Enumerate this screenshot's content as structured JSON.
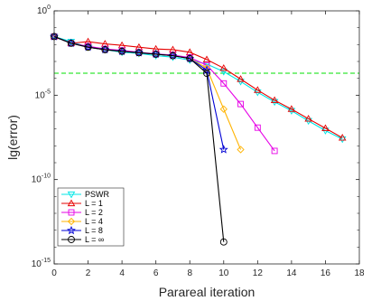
{
  "chart_data": {
    "type": "line",
    "title": "",
    "xlabel": "Parareal iteration",
    "ylabel": "lg(error)",
    "xlim": [
      0,
      18
    ],
    "ylim": [
      1e-15,
      1
    ],
    "yscale": "log",
    "grid": false,
    "legend_position": "bottom-left",
    "x_ticks": [
      0,
      2,
      4,
      6,
      8,
      10,
      12,
      14,
      16,
      18
    ],
    "x_tick_labels": [
      "0",
      "2",
      "4",
      "6",
      "8",
      "10",
      "12",
      "14",
      "16",
      "18"
    ],
    "y_ticks": [
      1,
      1e-05,
      1e-10,
      1e-15
    ],
    "y_tick_labels": [
      {
        "base": "10",
        "exp": "0"
      },
      {
        "base": "10",
        "exp": "-5"
      },
      {
        "base": "10",
        "exp": "-10"
      },
      {
        "base": "10",
        "exp": "-15"
      }
    ],
    "reference_line": {
      "y": 0.0002,
      "color": "#00e000",
      "style": "dashed"
    },
    "series": [
      {
        "name": "PSWR",
        "color": "#00e6e6",
        "marker": "triangle-down",
        "x": [
          0,
          1,
          2,
          3,
          4,
          5,
          6,
          7,
          8,
          9,
          10,
          11,
          12,
          13,
          14,
          15,
          16,
          17
        ],
        "y": [
          0.03,
          0.015,
          0.007,
          0.005,
          0.0035,
          0.003,
          0.0022,
          0.0018,
          0.0012,
          0.0007,
          0.00025,
          6.5e-05,
          1.5e-05,
          4e-06,
          1.2e-06,
          3e-07,
          8e-08,
          2.5e-08
        ]
      },
      {
        "name": "L = 1",
        "color": "#e60000",
        "marker": "triangle-up",
        "x": [
          0,
          1,
          2,
          3,
          4,
          5,
          6,
          7,
          8,
          9,
          10,
          11,
          12,
          13,
          14,
          15,
          16,
          17
        ],
        "y": [
          0.03,
          0.012,
          0.015,
          0.011,
          0.009,
          0.007,
          0.0055,
          0.005,
          0.0035,
          0.0013,
          0.0004,
          9e-05,
          2e-05,
          5e-06,
          1.5e-06,
          4e-07,
          1.1e-07,
          3e-08
        ]
      },
      {
        "name": "L = 2",
        "color": "#e600e6",
        "marker": "square",
        "x": [
          0,
          1,
          2,
          3,
          4,
          5,
          6,
          7,
          8,
          9,
          10,
          11,
          12,
          13
        ],
        "y": [
          0.03,
          0.012,
          0.008,
          0.0055,
          0.0045,
          0.0035,
          0.0028,
          0.0024,
          0.0017,
          0.0006,
          5e-05,
          3e-06,
          1.2e-07,
          5e-09
        ]
      },
      {
        "name": "L = 4",
        "color": "#ffb300",
        "marker": "diamond",
        "x": [
          0,
          1,
          2,
          3,
          4,
          5,
          6,
          7,
          8,
          9,
          10,
          11
        ],
        "y": [
          0.03,
          0.012,
          0.007,
          0.005,
          0.004,
          0.0033,
          0.0027,
          0.0022,
          0.0015,
          0.0004,
          1.5e-06,
          6e-09
        ]
      },
      {
        "name": "L = 8",
        "color": "#0000d4",
        "marker": "star",
        "x": [
          0,
          1,
          2,
          3,
          4,
          5,
          6,
          7,
          8,
          9,
          10
        ],
        "y": [
          0.03,
          0.012,
          0.007,
          0.005,
          0.004,
          0.0033,
          0.0027,
          0.0022,
          0.0015,
          0.0003,
          6e-09
        ]
      },
      {
        "name": "L = ∞",
        "color": "#000000",
        "marker": "circle",
        "x": [
          0,
          1,
          2,
          3,
          4,
          5,
          6,
          7,
          8,
          9,
          10
        ],
        "y": [
          0.03,
          0.012,
          0.007,
          0.005,
          0.004,
          0.0033,
          0.0027,
          0.0022,
          0.0015,
          0.0002,
          2e-14
        ]
      }
    ]
  }
}
